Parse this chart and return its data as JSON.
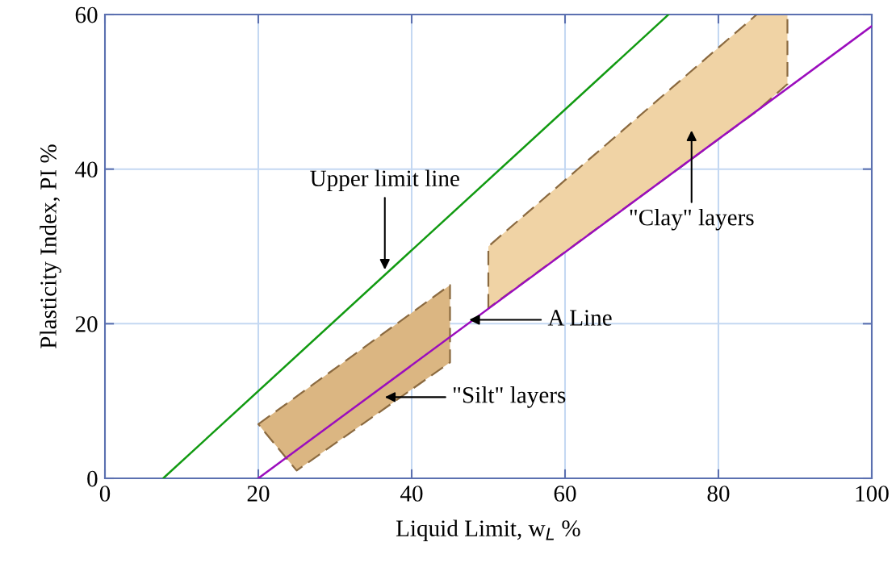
{
  "chart_data": {
    "type": "line",
    "xlabel": "Liquid Limit, w$_{L}$ %",
    "ylabel": "Plasticity Index, PI %",
    "xlim": [
      0,
      100
    ],
    "ylim": [
      0,
      60
    ],
    "xticks": [
      0,
      20,
      40,
      60,
      80,
      100
    ],
    "yticks": [
      0,
      20,
      40,
      60
    ],
    "grid": true,
    "series": [
      {
        "type": "area",
        "color": "#dbb682",
        "x": [
          20,
          45,
          45,
          25,
          20
        ],
        "values": [
          7,
          25,
          15,
          1,
          7
        ],
        "line_style": "dashed"
      },
      {
        "type": "area",
        "color": "#f0d3a5",
        "x": [
          50,
          50,
          85,
          89,
          89,
          85,
          50
        ],
        "values": [
          22,
          30,
          60,
          60,
          51,
          47.5,
          22
        ],
        "line_style": "dashed"
      },
      {
        "type": "line",
        "color": "#119a11",
        "x": [
          7.6,
          73.5
        ],
        "values": [
          0,
          60
        ]
      },
      {
        "type": "line",
        "color": "#9b0dbd",
        "x": [
          20,
          100
        ],
        "values": [
          0,
          58.5
        ]
      }
    ],
    "annotations": [
      {
        "text": "Upper limit line",
        "x": 36.5,
        "y": 27
      },
      {
        "text": "A Line",
        "x": 47.5,
        "y": 20.5
      },
      "\"Silt\" layers",
      "\"Clay\" layers"
    ]
  }
}
